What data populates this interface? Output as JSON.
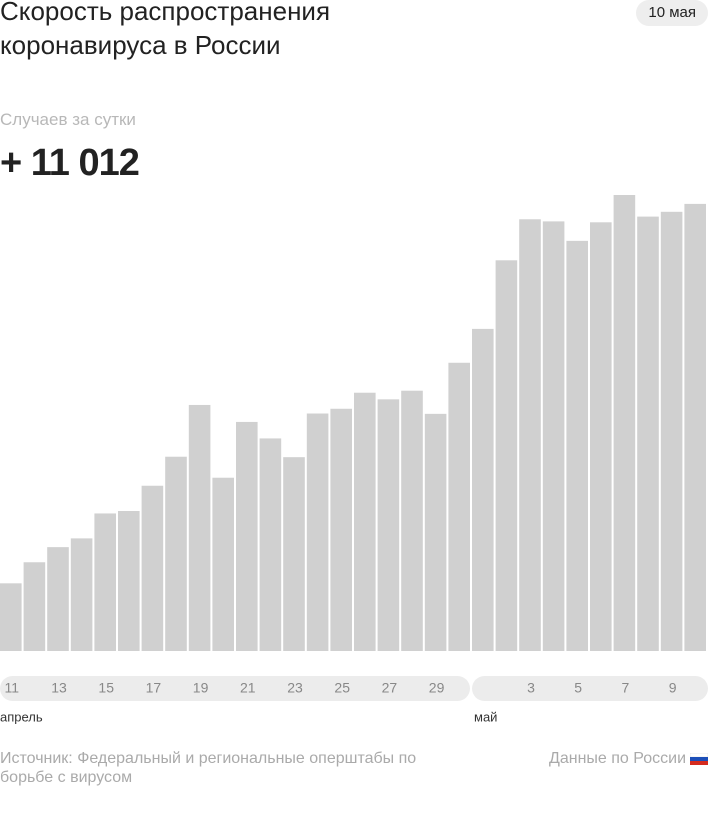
{
  "chart_data": {
    "type": "bar",
    "title": "Скорость распространения коронавируса в России",
    "date": "10 мая",
    "subtitle": "Случаев за сутки",
    "headline": "+ 11 012",
    "categories": [
      "11",
      null,
      "13",
      null,
      "15",
      null,
      "17",
      null,
      "19",
      null,
      "21",
      null,
      "23",
      null,
      "25",
      null,
      "27",
      null,
      "29",
      null,
      null,
      null,
      "3",
      null,
      "5",
      null,
      "7",
      null,
      "9",
      null
    ],
    "values": [
      1667,
      2186,
      2558,
      2774,
      3388,
      3448,
      4070,
      4785,
      6060,
      4268,
      5642,
      5236,
      4774,
      5849,
      5966,
      6361,
      6198,
      6411,
      5841,
      7099,
      7933,
      9623,
      10633,
      10581,
      10102,
      10559,
      11231,
      10699,
      10817,
      11012
    ],
    "color": "#d0d0d0",
    "months": [
      {
        "name": "апрель",
        "from": 0
      },
      {
        "name": "май",
        "from": 20
      }
    ],
    "source": "Источник: Федеральный и региональные оперштабы по борьбе с вирусом",
    "region": "Данные по России"
  }
}
